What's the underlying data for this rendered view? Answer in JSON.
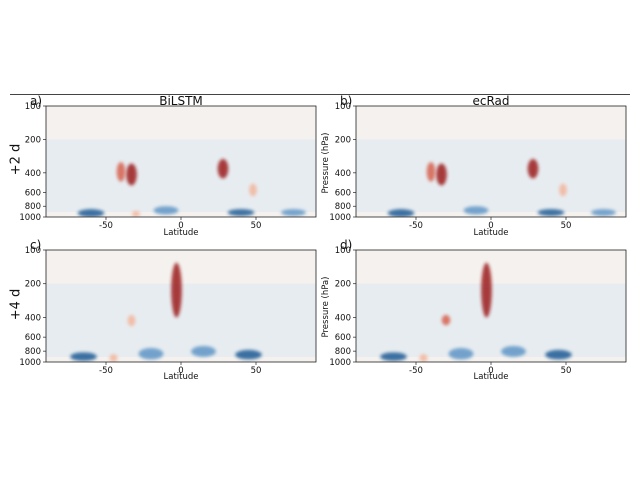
{
  "row_labels": [
    "+2 d",
    "+4 d"
  ],
  "column_titles": [
    "BiLSTM",
    "ecRad"
  ],
  "chart_data": [
    {
      "type": "heatmap",
      "panel": "a)",
      "title": "BiLSTM",
      "row": "+2 d",
      "xlabel": "Latitude",
      "ylabel": "",
      "xlim": [
        -90,
        90
      ],
      "ylim": [
        1000,
        100
      ],
      "xticks": [
        -50,
        0,
        50
      ],
      "yticks": [
        100,
        200,
        400,
        600,
        800,
        1000
      ],
      "colormap": "RdBu_r (red positive, blue negative)",
      "features": [
        {
          "lat": -33,
          "p_low": 330,
          "p_high": 520,
          "sign": "+",
          "strength": 0.95
        },
        {
          "lat": -40,
          "p_low": 320,
          "p_high": 480,
          "sign": "+",
          "strength": 0.5
        },
        {
          "lat": 28,
          "p_low": 300,
          "p_high": 450,
          "sign": "+",
          "strength": 0.95
        },
        {
          "lat": 48,
          "p_low": 500,
          "p_high": 650,
          "sign": "+",
          "strength": 0.3
        },
        {
          "lat": -60,
          "p_low": 850,
          "p_high": 1000,
          "sign": "-",
          "strength": 0.7
        },
        {
          "lat": -10,
          "p_low": 800,
          "p_high": 950,
          "sign": "-",
          "strength": 0.6
        },
        {
          "lat": 40,
          "p_low": 850,
          "p_high": 980,
          "sign": "-",
          "strength": 0.7
        },
        {
          "lat": 75,
          "p_low": 850,
          "p_high": 980,
          "sign": "-",
          "strength": 0.6
        },
        {
          "lat": -30,
          "p_low": 880,
          "p_high": 1000,
          "sign": "+",
          "strength": 0.4
        }
      ]
    },
    {
      "type": "heatmap",
      "panel": "b)",
      "title": "ecRad",
      "row": "+2 d",
      "xlabel": "Latitude",
      "ylabel": "Pressure (hPa)",
      "xlim": [
        -90,
        90
      ],
      "ylim": [
        1000,
        100
      ],
      "xticks": [
        -50,
        0,
        50
      ],
      "yticks": [
        100,
        200,
        400,
        600,
        800,
        1000
      ],
      "colormap": "RdBu_r (red positive, blue negative)",
      "features": [
        {
          "lat": -33,
          "p_low": 330,
          "p_high": 520,
          "sign": "+",
          "strength": 0.95
        },
        {
          "lat": -40,
          "p_low": 320,
          "p_high": 480,
          "sign": "+",
          "strength": 0.5
        },
        {
          "lat": 28,
          "p_low": 300,
          "p_high": 450,
          "sign": "+",
          "strength": 0.95
        },
        {
          "lat": 48,
          "p_low": 500,
          "p_high": 650,
          "sign": "+",
          "strength": 0.3
        },
        {
          "lat": -60,
          "p_low": 850,
          "p_high": 1000,
          "sign": "-",
          "strength": 0.7
        },
        {
          "lat": -10,
          "p_low": 800,
          "p_high": 950,
          "sign": "-",
          "strength": 0.6
        },
        {
          "lat": 40,
          "p_low": 850,
          "p_high": 980,
          "sign": "-",
          "strength": 0.7
        },
        {
          "lat": 75,
          "p_low": 850,
          "p_high": 980,
          "sign": "-",
          "strength": 0.6
        }
      ]
    },
    {
      "type": "heatmap",
      "panel": "c)",
      "title": "",
      "row": "+4 d",
      "xlabel": "Latitude",
      "ylabel": "",
      "xlim": [
        -90,
        90
      ],
      "ylim": [
        1000,
        100
      ],
      "xticks": [
        -50,
        0,
        50
      ],
      "yticks": [
        100,
        200,
        400,
        600,
        800,
        1000
      ],
      "colormap": "RdBu_r (red positive, blue negative)",
      "features": [
        {
          "lat": -3,
          "p_low": 130,
          "p_high": 400,
          "sign": "+",
          "strength": 0.95
        },
        {
          "lat": -33,
          "p_low": 380,
          "p_high": 480,
          "sign": "+",
          "strength": 0.3
        },
        {
          "lat": -20,
          "p_low": 750,
          "p_high": 950,
          "sign": "-",
          "strength": 0.6
        },
        {
          "lat": 15,
          "p_low": 720,
          "p_high": 900,
          "sign": "-",
          "strength": 0.6
        },
        {
          "lat": 45,
          "p_low": 780,
          "p_high": 950,
          "sign": "-",
          "strength": 0.7
        },
        {
          "lat": -65,
          "p_low": 820,
          "p_high": 980,
          "sign": "-",
          "strength": 0.7
        },
        {
          "lat": -45,
          "p_low": 850,
          "p_high": 1000,
          "sign": "+",
          "strength": 0.4
        }
      ]
    },
    {
      "type": "heatmap",
      "panel": "d)",
      "title": "",
      "row": "+4 d",
      "xlabel": "Latitude",
      "ylabel": "Pressure (hPa)",
      "xlim": [
        -90,
        90
      ],
      "ylim": [
        1000,
        100
      ],
      "xticks": [
        -50,
        0,
        50
      ],
      "yticks": [
        100,
        200,
        400,
        600,
        800,
        1000
      ],
      "colormap": "RdBu_r (red positive, blue negative)",
      "features": [
        {
          "lat": -3,
          "p_low": 130,
          "p_high": 400,
          "sign": "+",
          "strength": 0.95
        },
        {
          "lat": -30,
          "p_low": 380,
          "p_high": 470,
          "sign": "+",
          "strength": 0.5
        },
        {
          "lat": -20,
          "p_low": 750,
          "p_high": 950,
          "sign": "-",
          "strength": 0.6
        },
        {
          "lat": 15,
          "p_low": 720,
          "p_high": 900,
          "sign": "-",
          "strength": 0.6
        },
        {
          "lat": 45,
          "p_low": 780,
          "p_high": 950,
          "sign": "-",
          "strength": 0.7
        },
        {
          "lat": -65,
          "p_low": 820,
          "p_high": 980,
          "sign": "-",
          "strength": 0.7
        },
        {
          "lat": -45,
          "p_low": 850,
          "p_high": 1000,
          "sign": "+",
          "strength": 0.4
        }
      ]
    }
  ]
}
